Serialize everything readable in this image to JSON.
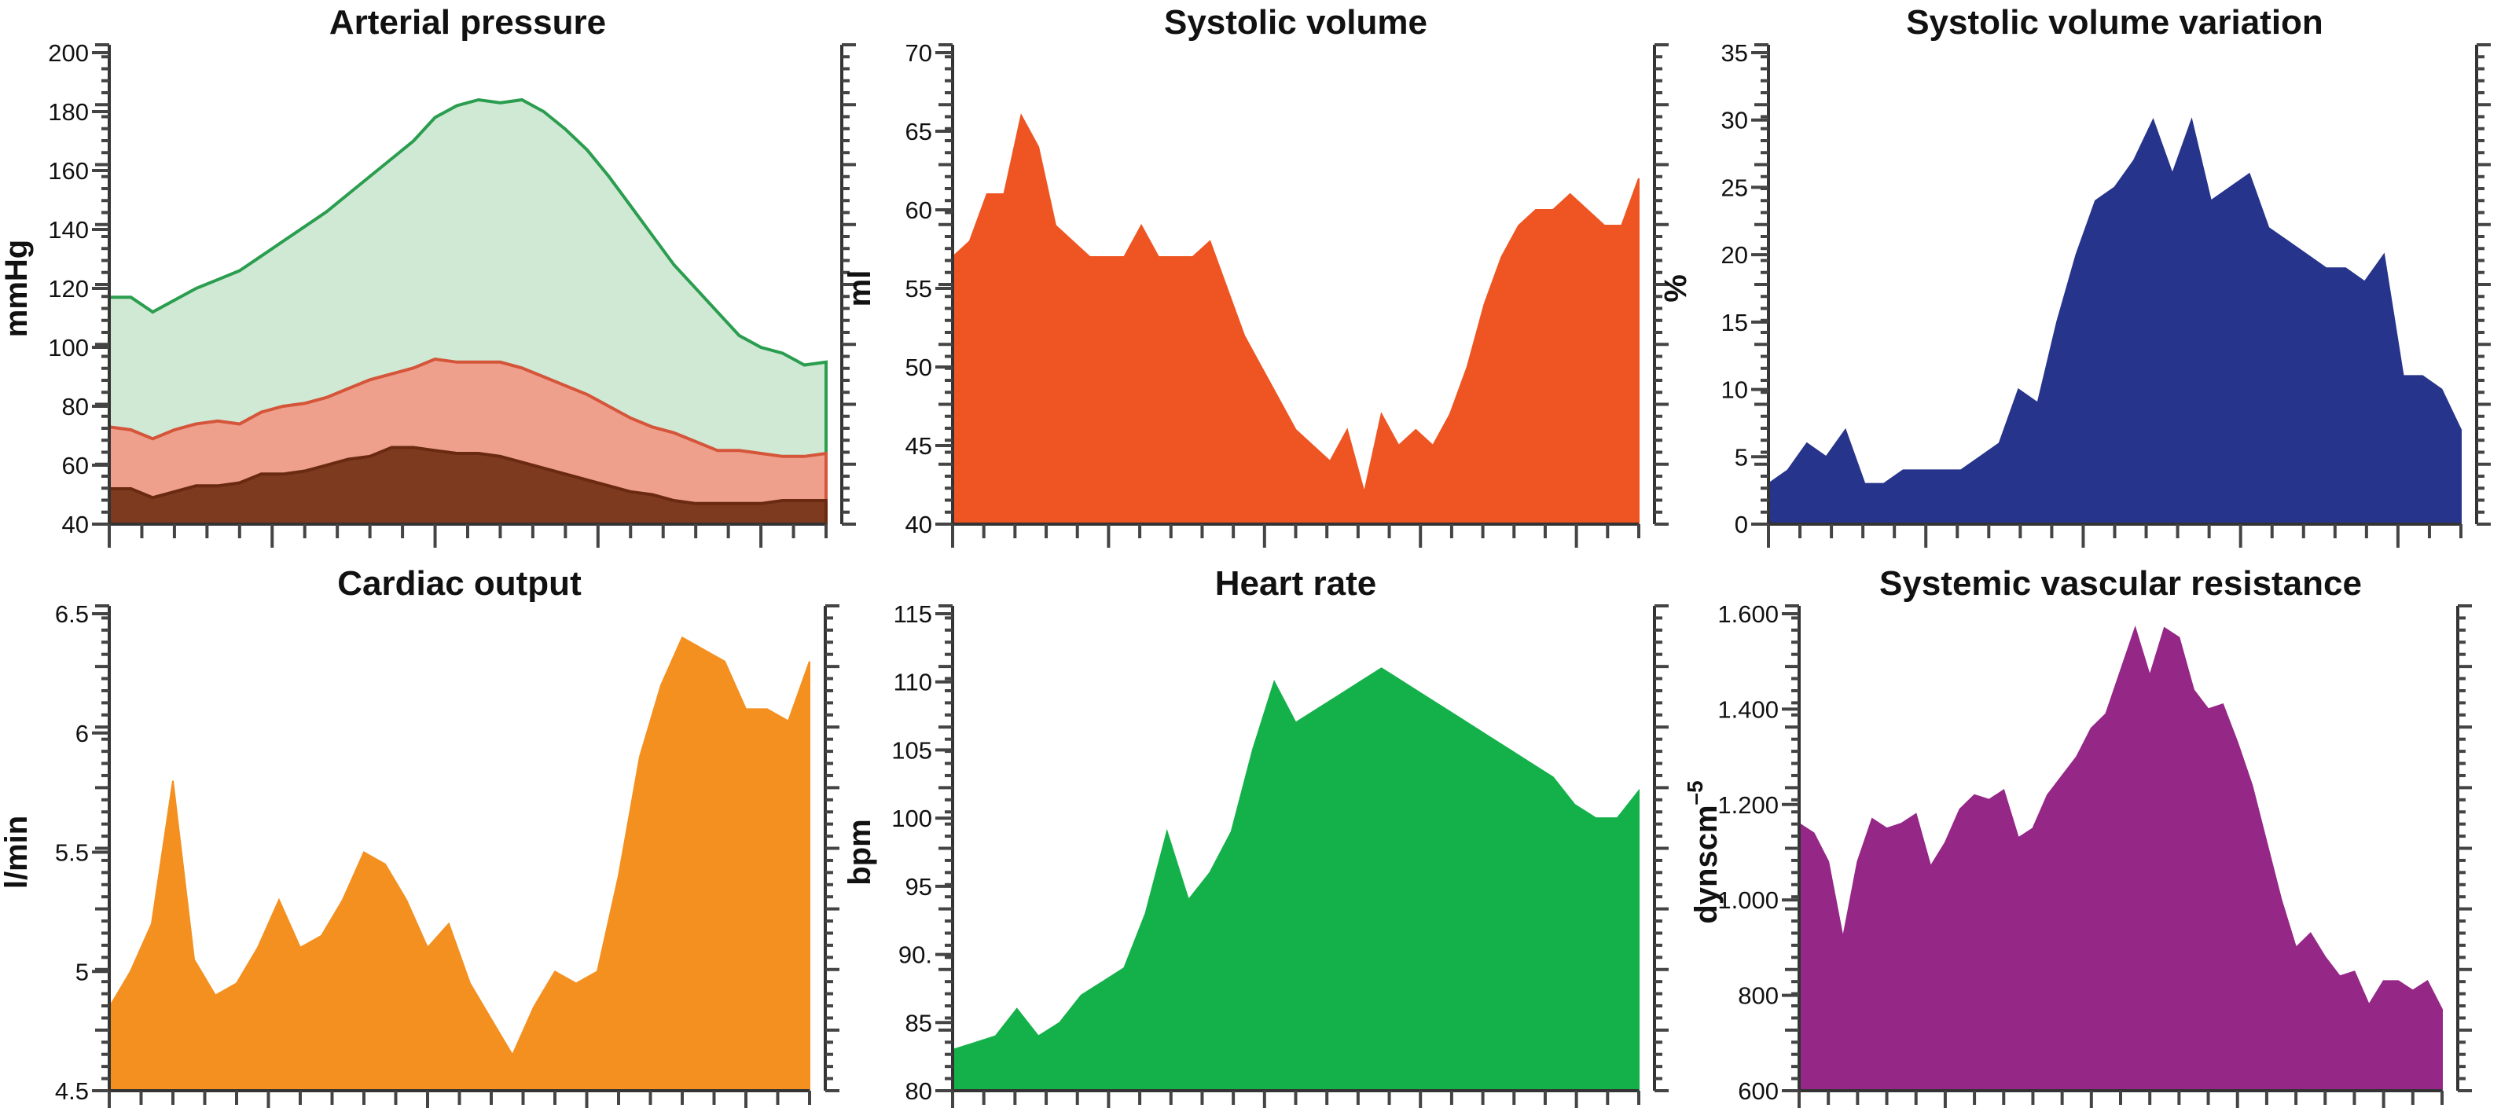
{
  "chart_data": [
    {
      "type": "area",
      "title": "Arterial pressure",
      "ylabel": "mmHg",
      "ylim": [
        40,
        200
      ],
      "yticks": [
        40,
        60,
        80,
        100,
        120,
        140,
        160,
        180,
        200
      ],
      "ytick_labels": [
        "40",
        "60",
        "80",
        "100",
        "120",
        "140",
        "160",
        "180",
        "200"
      ],
      "grid": false,
      "series": [
        {
          "color": "#2a9d4e",
          "fill": "#cfe9d4",
          "values": [
            117,
            117,
            112,
            116,
            120,
            123,
            126,
            131,
            136,
            141,
            146,
            152,
            158,
            164,
            170,
            178,
            182,
            184,
            183,
            184,
            180,
            174,
            167,
            158,
            148,
            138,
            128,
            120,
            112,
            104,
            100,
            98,
            94,
            95
          ]
        },
        {
          "color": "#d5553a",
          "fill": "#eea08c",
          "values": [
            73,
            72,
            69,
            72,
            74,
            75,
            74,
            78,
            80,
            81,
            83,
            86,
            89,
            91,
            93,
            96,
            95,
            95,
            95,
            93,
            90,
            87,
            84,
            80,
            76,
            73,
            71,
            68,
            65,
            65,
            64,
            63,
            63,
            64
          ]
        },
        {
          "color": "#6a2a12",
          "fill": "#7d3a1e",
          "values": [
            52,
            52,
            49,
            51,
            53,
            53,
            54,
            57,
            57,
            58,
            60,
            62,
            63,
            66,
            66,
            65,
            64,
            64,
            63,
            61,
            59,
            57,
            55,
            53,
            51,
            50,
            48,
            47,
            47,
            47,
            47,
            48,
            48,
            48
          ]
        }
      ]
    },
    {
      "type": "area",
      "title": "Systolic volume",
      "ylabel": "ml",
      "ylim": [
        40,
        70
      ],
      "yticks": [
        40,
        45,
        50,
        55,
        60,
        65,
        70
      ],
      "ytick_labels": [
        "40",
        "45",
        "50",
        "55",
        "60",
        "65",
        "70"
      ],
      "series": [
        {
          "color": "#ee5522",
          "values": [
            57,
            58,
            61,
            61,
            66,
            64,
            59,
            58,
            57,
            57,
            57,
            59,
            57,
            57,
            57,
            58,
            55,
            52,
            50,
            48,
            46,
            45,
            44,
            46,
            42,
            47,
            45,
            46,
            45,
            47,
            50,
            54,
            57,
            59,
            60,
            60,
            61,
            60,
            59,
            59,
            62
          ]
        }
      ]
    },
    {
      "type": "area",
      "title": "Systolic volume variation",
      "ylabel": "%",
      "ylim": [
        0,
        35
      ],
      "yticks": [
        0,
        5,
        10,
        15,
        20,
        25,
        30,
        35
      ],
      "ytick_labels": [
        "0",
        "5",
        "10",
        "15",
        "20",
        "25",
        "30",
        "35"
      ],
      "series": [
        {
          "color": "#27348b",
          "values": [
            3,
            4,
            6,
            5,
            7,
            3,
            3,
            4,
            4,
            4,
            4,
            5,
            6,
            10,
            9,
            15,
            20,
            24,
            25,
            27,
            30,
            26,
            30,
            24,
            25,
            26,
            22,
            21,
            20,
            19,
            19,
            18,
            20,
            11,
            11,
            10,
            7
          ]
        }
      ]
    },
    {
      "type": "area",
      "title": "Cardiac output",
      "ylabel": "l/min",
      "ylim": [
        4.5,
        6.5
      ],
      "yticks": [
        4.5,
        5,
        5.5,
        6,
        6.5
      ],
      "ytick_labels": [
        "4.5",
        "5",
        "5.5",
        "6",
        "6.5"
      ],
      "series": [
        {
          "color": "#f39020",
          "values": [
            4.85,
            5.0,
            5.2,
            5.8,
            5.05,
            4.9,
            4.95,
            5.1,
            5.3,
            5.1,
            5.15,
            5.3,
            5.5,
            5.45,
            5.3,
            5.1,
            5.2,
            4.95,
            4.8,
            4.65,
            4.85,
            5.0,
            4.95,
            5.0,
            5.4,
            5.9,
            6.2,
            6.4,
            6.35,
            6.3,
            6.1,
            6.1,
            6.05,
            6.3
          ]
        }
      ]
    },
    {
      "type": "area",
      "title": "Heart rate",
      "ylabel": "bpm",
      "ylim": [
        80,
        115
      ],
      "yticks": [
        80,
        85,
        90,
        95,
        100,
        105,
        110,
        115
      ],
      "ytick_labels": [
        "80",
        "85",
        "90.",
        "95",
        "100",
        "105",
        "110",
        "115"
      ],
      "series": [
        {
          "color": "#14b14a",
          "values": [
            83,
            83.5,
            84,
            86,
            84,
            85,
            87,
            88,
            89,
            93,
            99,
            94,
            96,
            99,
            105,
            110,
            107,
            108,
            109,
            110,
            111,
            110,
            109,
            108,
            107,
            106,
            105,
            104,
            103,
            101,
            100,
            100,
            102
          ]
        }
      ]
    },
    {
      "type": "area",
      "title": "Systemic vascular resistance",
      "ylabel": "dynscm",
      "ylabel_sup": "–5",
      "ylim": [
        600,
        1600
      ],
      "yticks": [
        600,
        800,
        1000,
        1200,
        1400,
        1600
      ],
      "ytick_labels": [
        "600",
        "800",
        "1.000",
        "1.200",
        "1.400",
        "1.600"
      ],
      "series": [
        {
          "color": "#952787",
          "values": [
            1160,
            1140,
            1080,
            920,
            1080,
            1170,
            1150,
            1160,
            1180,
            1070,
            1120,
            1190,
            1220,
            1210,
            1230,
            1130,
            1150,
            1220,
            1260,
            1300,
            1360,
            1390,
            1480,
            1570,
            1470,
            1570,
            1550,
            1440,
            1400,
            1410,
            1330,
            1240,
            1120,
            1000,
            900,
            930,
            880,
            840,
            850,
            780,
            830,
            830,
            810,
            830,
            770
          ]
        }
      ]
    }
  ]
}
